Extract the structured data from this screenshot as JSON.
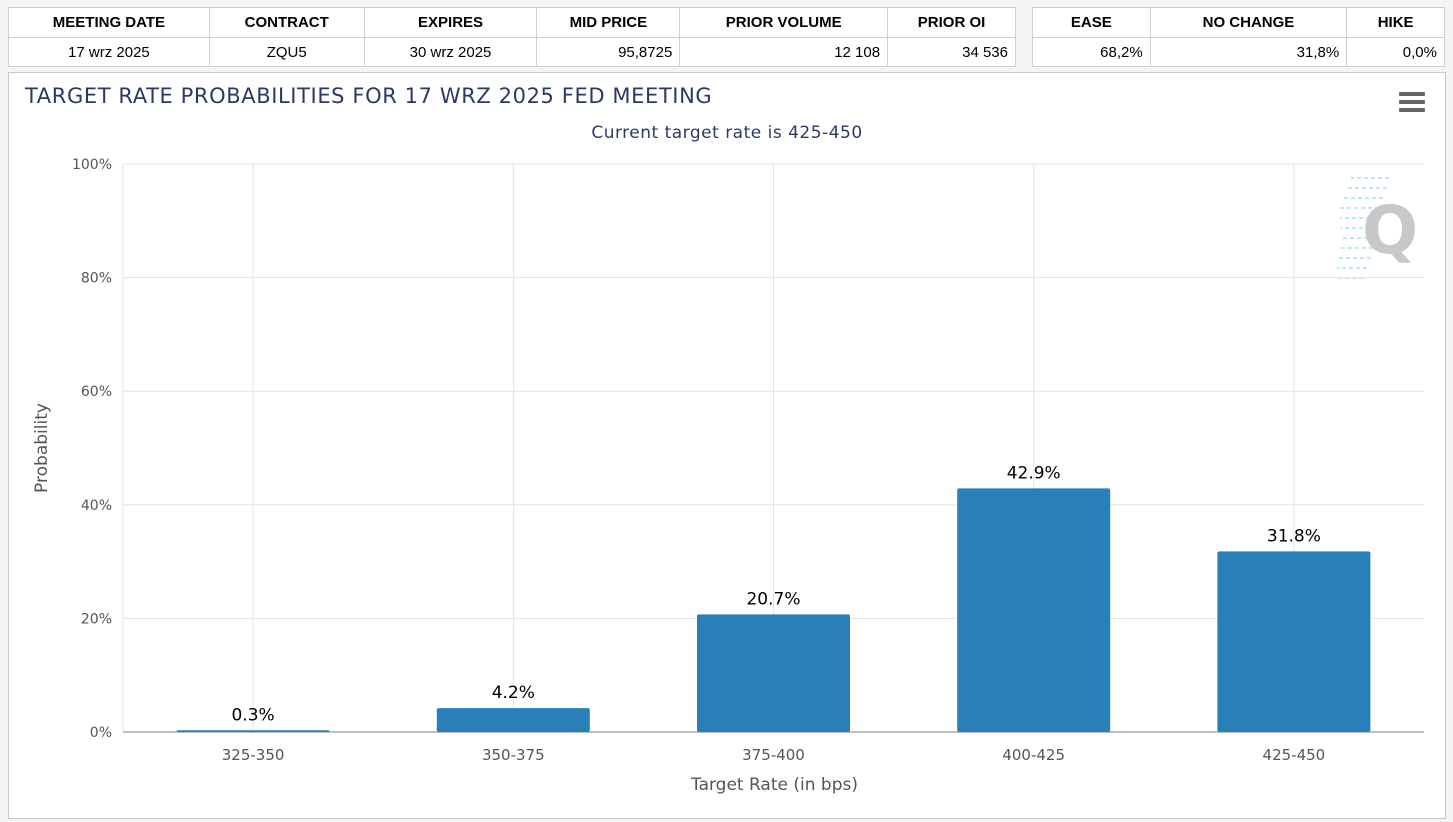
{
  "summary": {
    "headers": [
      "MEETING DATE",
      "CONTRACT",
      "EXPIRES",
      "MID PRICE",
      "PRIOR VOLUME",
      "PRIOR OI"
    ],
    "values": [
      "17 wrz 2025",
      "ZQU5",
      "30 wrz 2025",
      "95,8725",
      "12 108",
      "34 536"
    ]
  },
  "outcomes": {
    "headers": [
      "EASE",
      "NO CHANGE",
      "HIKE"
    ],
    "values": [
      "68,2%",
      "31,8%",
      "0,0%"
    ]
  },
  "menu_icon": "hamburger-menu-icon",
  "logo_icon": "q-logo",
  "chart_data": {
    "type": "bar",
    "title": "TARGET RATE PROBABILITIES FOR 17 WRZ 2025 FED MEETING",
    "subtitle": "Current target rate is 425-450",
    "xlabel": "Target Rate (in bps)",
    "ylabel": "Probability",
    "categories": [
      "325-350",
      "350-375",
      "375-400",
      "400-425",
      "425-450"
    ],
    "values": [
      0.3,
      4.2,
      20.7,
      42.9,
      31.8
    ],
    "data_labels": [
      "0.3%",
      "4.2%",
      "20.7%",
      "42.9%",
      "31.8%"
    ],
    "ylim": [
      0,
      100
    ],
    "yticks": [
      0,
      20,
      40,
      60,
      80,
      100
    ],
    "ytick_labels": [
      "0%",
      "20%",
      "40%",
      "60%",
      "80%",
      "100%"
    ],
    "grid": true,
    "bar_color": "#2980b9"
  }
}
